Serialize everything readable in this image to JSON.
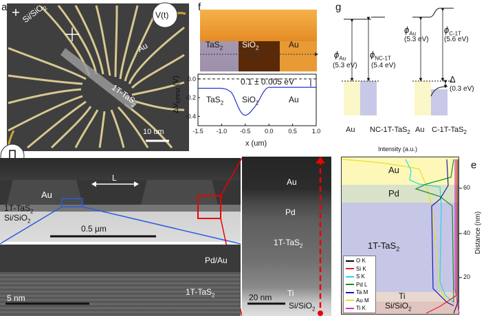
{
  "panels": {
    "a": {
      "letter": "a",
      "substrate_label": "Si/SiO",
      "substrate_sub": "2",
      "au_label": "Au",
      "flake_label": "1T-TaS",
      "flake_sub": "2",
      "voltage_label": "V(t)",
      "scalebar": "10 um",
      "pulse_symbol": "⎍"
    },
    "b": {
      "letter": "b",
      "au_label": "Au",
      "gap_label": "L",
      "flake_label": "1T-TaS",
      "flake_sub": "2",
      "substrate_label": "Si/SiO",
      "substrate_sub": "2",
      "scalebar": "0.5 µm"
    },
    "c": {
      "letter": "c",
      "top_label": "Pd/Au",
      "flake_label": "1T-TaS",
      "flake_sub": "2",
      "scalebar": "5 nm"
    },
    "d": {
      "letter": "d",
      "au_label": "Au",
      "pd_label": "Pd",
      "flake_label": "1T-TaS",
      "flake_sub": "2",
      "ti_label": "Ti",
      "substrate_label": "Si/SiO",
      "substrate_sub": "2",
      "scalebar": "20 nm"
    },
    "e": {
      "letter": "e",
      "intensity_label": "Intensity (a.u.)",
      "distance_label": "Distance (nm)",
      "layers": {
        "au": "Au",
        "pd": "Pd",
        "flake": "1T-TaS",
        "flake_sub": "2",
        "ti": "Ti",
        "substrate": "Si/SiO",
        "substrate_sub": "2"
      },
      "legend": [
        {
          "name": "O K",
          "color": "#000000"
        },
        {
          "name": "Si K",
          "color": "#e0202a"
        },
        {
          "name": "S K",
          "color": "#22d8e8"
        },
        {
          "name": "Pd L",
          "color": "#1a8a2a"
        },
        {
          "name": "Ta M",
          "color": "#1a1aa8"
        },
        {
          "name": "Au M",
          "color": "#e8e020"
        },
        {
          "name": "Ti K",
          "color": "#d030d0"
        }
      ],
      "y_ticks": [
        "20",
        "40",
        "60"
      ]
    },
    "f": {
      "letter": "f",
      "map_labels": {
        "tas2": "TaS",
        "tas2_sub": "2",
        "sio2": "SiO",
        "sio2_sub": "2",
        "au": "Au"
      },
      "annotation": "0.1 ± 0.005 eV",
      "region_labels": {
        "tas2": "TaS",
        "tas2_sub": "2",
        "sio2": "SiO",
        "sio2_sub": "2",
        "au": "Au"
      },
      "ylabel_main": "ΔV",
      "ylabel_sub": "KPFM",
      "ylabel_unit": " (V)",
      "xlabel": "x (um)",
      "x_ticks": [
        "-1.5",
        "-1.0",
        "-0.5",
        "0.0",
        "0.5",
        "1.0"
      ],
      "y_ticks": [
        "0.0",
        "-0.2",
        "-0.4"
      ]
    },
    "g": {
      "letter": "g",
      "phi_au_left": "ϕ",
      "phi_au_left_sub": "Au",
      "phi_au_left_val": "(5.3 eV)",
      "phi_nc_sub": "NC-1T",
      "phi_nc_val": "(5.4 eV)",
      "phi_au_right_sub": "Au",
      "phi_au_right_val": "(5.3 eV)",
      "phi_c_sub": "C-1T",
      "phi_c_val": "(5.6 eV)",
      "delta": "Δ",
      "delta_val": "(0.3 eV)",
      "bottom_left_au": "Au",
      "bottom_left_nc": "NC-1T-TaS",
      "bottom_left_nc_sub": "2",
      "bottom_right_au": "Au",
      "bottom_right_c": "C-1T-TaS",
      "bottom_right_c_sub": "2"
    }
  },
  "chart_data": [
    {
      "type": "line",
      "title": "",
      "xlabel": "x (um)",
      "ylabel": "ΔV KPFM (V)",
      "xlim": [
        -1.5,
        1.0
      ],
      "ylim": [
        -0.5,
        0.05
      ],
      "series": [
        {
          "x": [
            -1.5,
            -1.3,
            -1.1,
            -1.0,
            -0.9,
            -0.8,
            -0.75,
            -0.7,
            -0.65,
            -0.6,
            -0.55,
            -0.5,
            -0.45,
            -0.4,
            -0.35,
            -0.3,
            -0.25,
            -0.2,
            -0.15,
            -0.1,
            -0.05,
            0.0,
            0.2,
            0.4,
            0.6,
            0.8,
            1.0
          ],
          "y": [
            -0.1,
            -0.1,
            -0.1,
            -0.1,
            -0.11,
            -0.14,
            -0.18,
            -0.24,
            -0.3,
            -0.35,
            -0.38,
            -0.39,
            -0.38,
            -0.36,
            -0.33,
            -0.3,
            -0.26,
            -0.22,
            -0.17,
            -0.13,
            -0.1,
            -0.09,
            -0.09,
            -0.09,
            -0.09,
            -0.09,
            -0.09
          ]
        }
      ]
    }
  ]
}
